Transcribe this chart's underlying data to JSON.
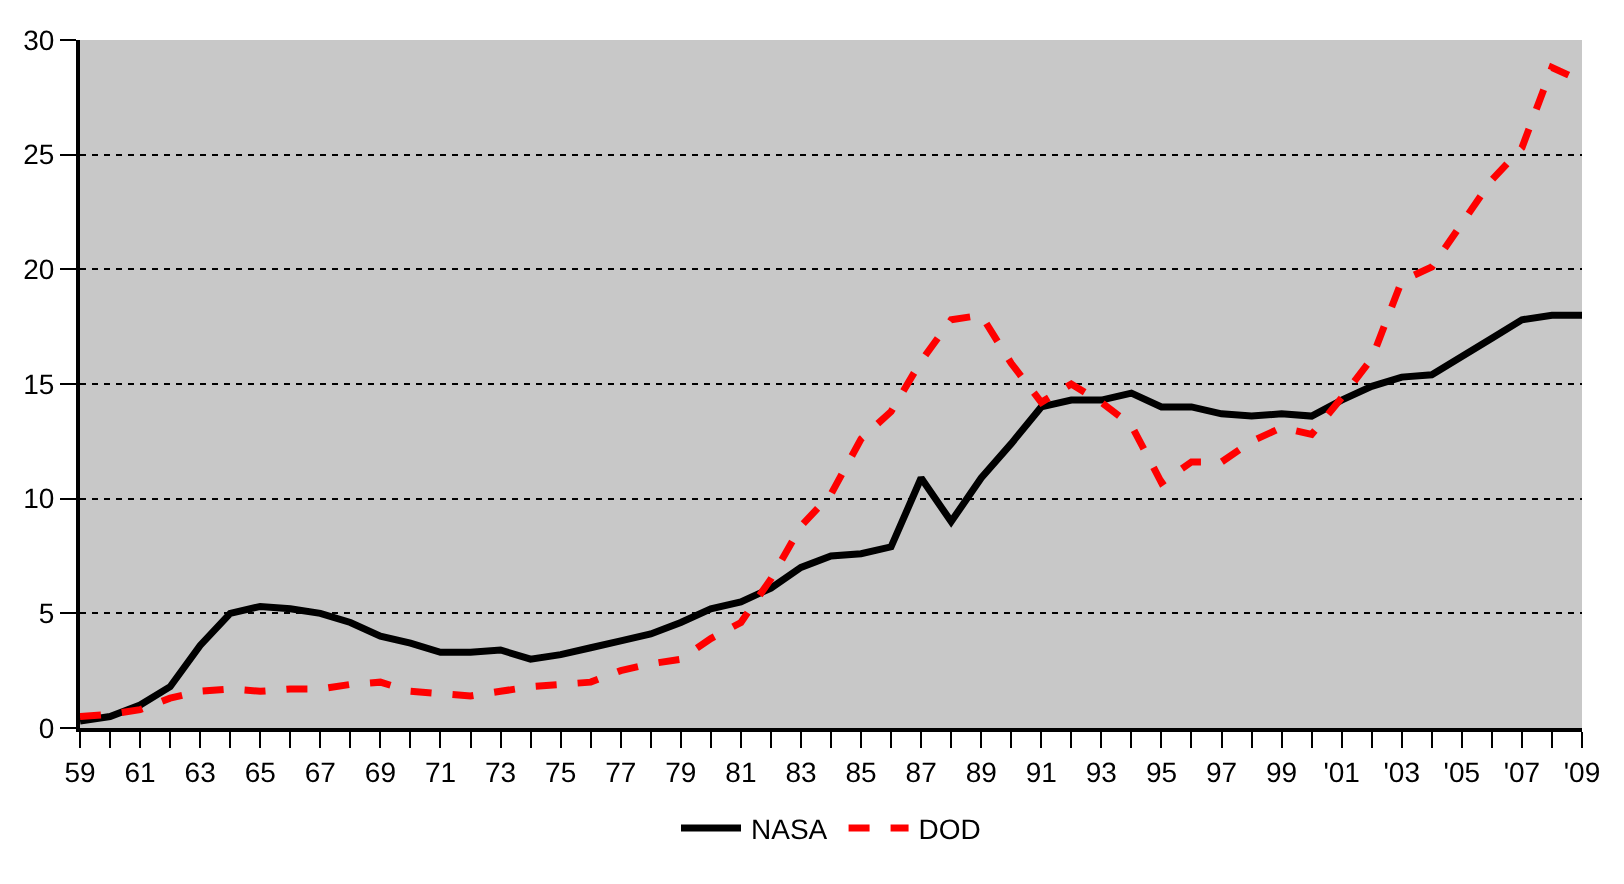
{
  "chart_data": {
    "type": "line",
    "x": [
      1959,
      1960,
      1961,
      1962,
      1963,
      1964,
      1965,
      1966,
      1967,
      1968,
      1969,
      1970,
      1971,
      1972,
      1973,
      1974,
      1975,
      1976,
      1977,
      1978,
      1979,
      1980,
      1981,
      1982,
      1983,
      1984,
      1985,
      1986,
      1987,
      1988,
      1989,
      1990,
      1991,
      1992,
      1993,
      1994,
      1995,
      1996,
      1997,
      1998,
      1999,
      2000,
      2001,
      2002,
      2003,
      2004,
      2005,
      2006,
      2007,
      2008,
      2009
    ],
    "series": [
      {
        "name": "NASA",
        "color": "#000000",
        "line_style": "solid",
        "values": [
          0.3,
          0.5,
          1.0,
          1.8,
          3.6,
          5.0,
          5.3,
          5.2,
          5.0,
          4.6,
          4.0,
          3.7,
          3.3,
          3.3,
          3.4,
          3.0,
          3.2,
          3.5,
          3.8,
          4.1,
          4.6,
          5.2,
          5.5,
          6.1,
          7.0,
          7.5,
          7.6,
          7.9,
          10.9,
          9.0,
          10.9,
          12.4,
          14.0,
          14.3,
          14.3,
          14.6,
          14.0,
          14.0,
          13.7,
          13.6,
          13.7,
          13.6,
          14.3,
          14.9,
          15.3,
          15.4,
          16.2,
          17.0,
          17.8,
          18.0,
          18.0
        ]
      },
      {
        "name": "DOD",
        "color": "#ff0000",
        "line_style": "dashed",
        "values": [
          0.5,
          0.6,
          0.8,
          1.3,
          1.6,
          1.7,
          1.6,
          1.7,
          1.7,
          1.9,
          2.0,
          1.6,
          1.5,
          1.4,
          1.6,
          1.8,
          1.9,
          2.0,
          2.5,
          2.8,
          3.0,
          3.9,
          4.6,
          6.5,
          8.8,
          10.2,
          12.6,
          13.8,
          16.0,
          17.8,
          18.0,
          15.9,
          14.2,
          15.0,
          14.2,
          13.2,
          10.7,
          11.6,
          11.6,
          12.5,
          13.1,
          12.8,
          14.4,
          16.1,
          19.5,
          20.1,
          22.0,
          23.9,
          25.3,
          28.8,
          28.2
        ]
      }
    ],
    "xlim": [
      1959,
      2009
    ],
    "xticks": [
      {
        "value": 1959,
        "label": "59"
      },
      {
        "value": 1960,
        "label": null
      },
      {
        "value": 1961,
        "label": "61"
      },
      {
        "value": 1962,
        "label": null
      },
      {
        "value": 1963,
        "label": "63"
      },
      {
        "value": 1964,
        "label": null
      },
      {
        "value": 1965,
        "label": "65"
      },
      {
        "value": 1966,
        "label": null
      },
      {
        "value": 1967,
        "label": "67"
      },
      {
        "value": 1968,
        "label": null
      },
      {
        "value": 1969,
        "label": "69"
      },
      {
        "value": 1970,
        "label": null
      },
      {
        "value": 1971,
        "label": "71"
      },
      {
        "value": 1972,
        "label": null
      },
      {
        "value": 1973,
        "label": "73"
      },
      {
        "value": 1974,
        "label": null
      },
      {
        "value": 1975,
        "label": "75"
      },
      {
        "value": 1976,
        "label": null
      },
      {
        "value": 1977,
        "label": "77"
      },
      {
        "value": 1978,
        "label": null
      },
      {
        "value": 1979,
        "label": "79"
      },
      {
        "value": 1980,
        "label": null
      },
      {
        "value": 1981,
        "label": "81"
      },
      {
        "value": 1982,
        "label": null
      },
      {
        "value": 1983,
        "label": "83"
      },
      {
        "value": 1984,
        "label": null
      },
      {
        "value": 1985,
        "label": "85"
      },
      {
        "value": 1986,
        "label": null
      },
      {
        "value": 1987,
        "label": "87"
      },
      {
        "value": 1988,
        "label": null
      },
      {
        "value": 1989,
        "label": "89"
      },
      {
        "value": 1990,
        "label": null
      },
      {
        "value": 1991,
        "label": "91"
      },
      {
        "value": 1992,
        "label": null
      },
      {
        "value": 1993,
        "label": "93"
      },
      {
        "value": 1994,
        "label": null
      },
      {
        "value": 1995,
        "label": "95"
      },
      {
        "value": 1996,
        "label": null
      },
      {
        "value": 1997,
        "label": "97"
      },
      {
        "value": 1998,
        "label": null
      },
      {
        "value": 1999,
        "label": "99"
      },
      {
        "value": 2000,
        "label": null
      },
      {
        "value": 2001,
        "label": "'01"
      },
      {
        "value": 2002,
        "label": null
      },
      {
        "value": 2003,
        "label": "'03"
      },
      {
        "value": 2004,
        "label": null
      },
      {
        "value": 2005,
        "label": "'05"
      },
      {
        "value": 2006,
        "label": null
      },
      {
        "value": 2007,
        "label": "'07"
      },
      {
        "value": 2008,
        "label": null
      },
      {
        "value": 2009,
        "label": "'09"
      }
    ],
    "ylim": [
      0,
      30
    ],
    "yticks": [
      0,
      5,
      10,
      15,
      20,
      25,
      30
    ],
    "grid": "y",
    "legend": "bottom",
    "marker": "none"
  }
}
